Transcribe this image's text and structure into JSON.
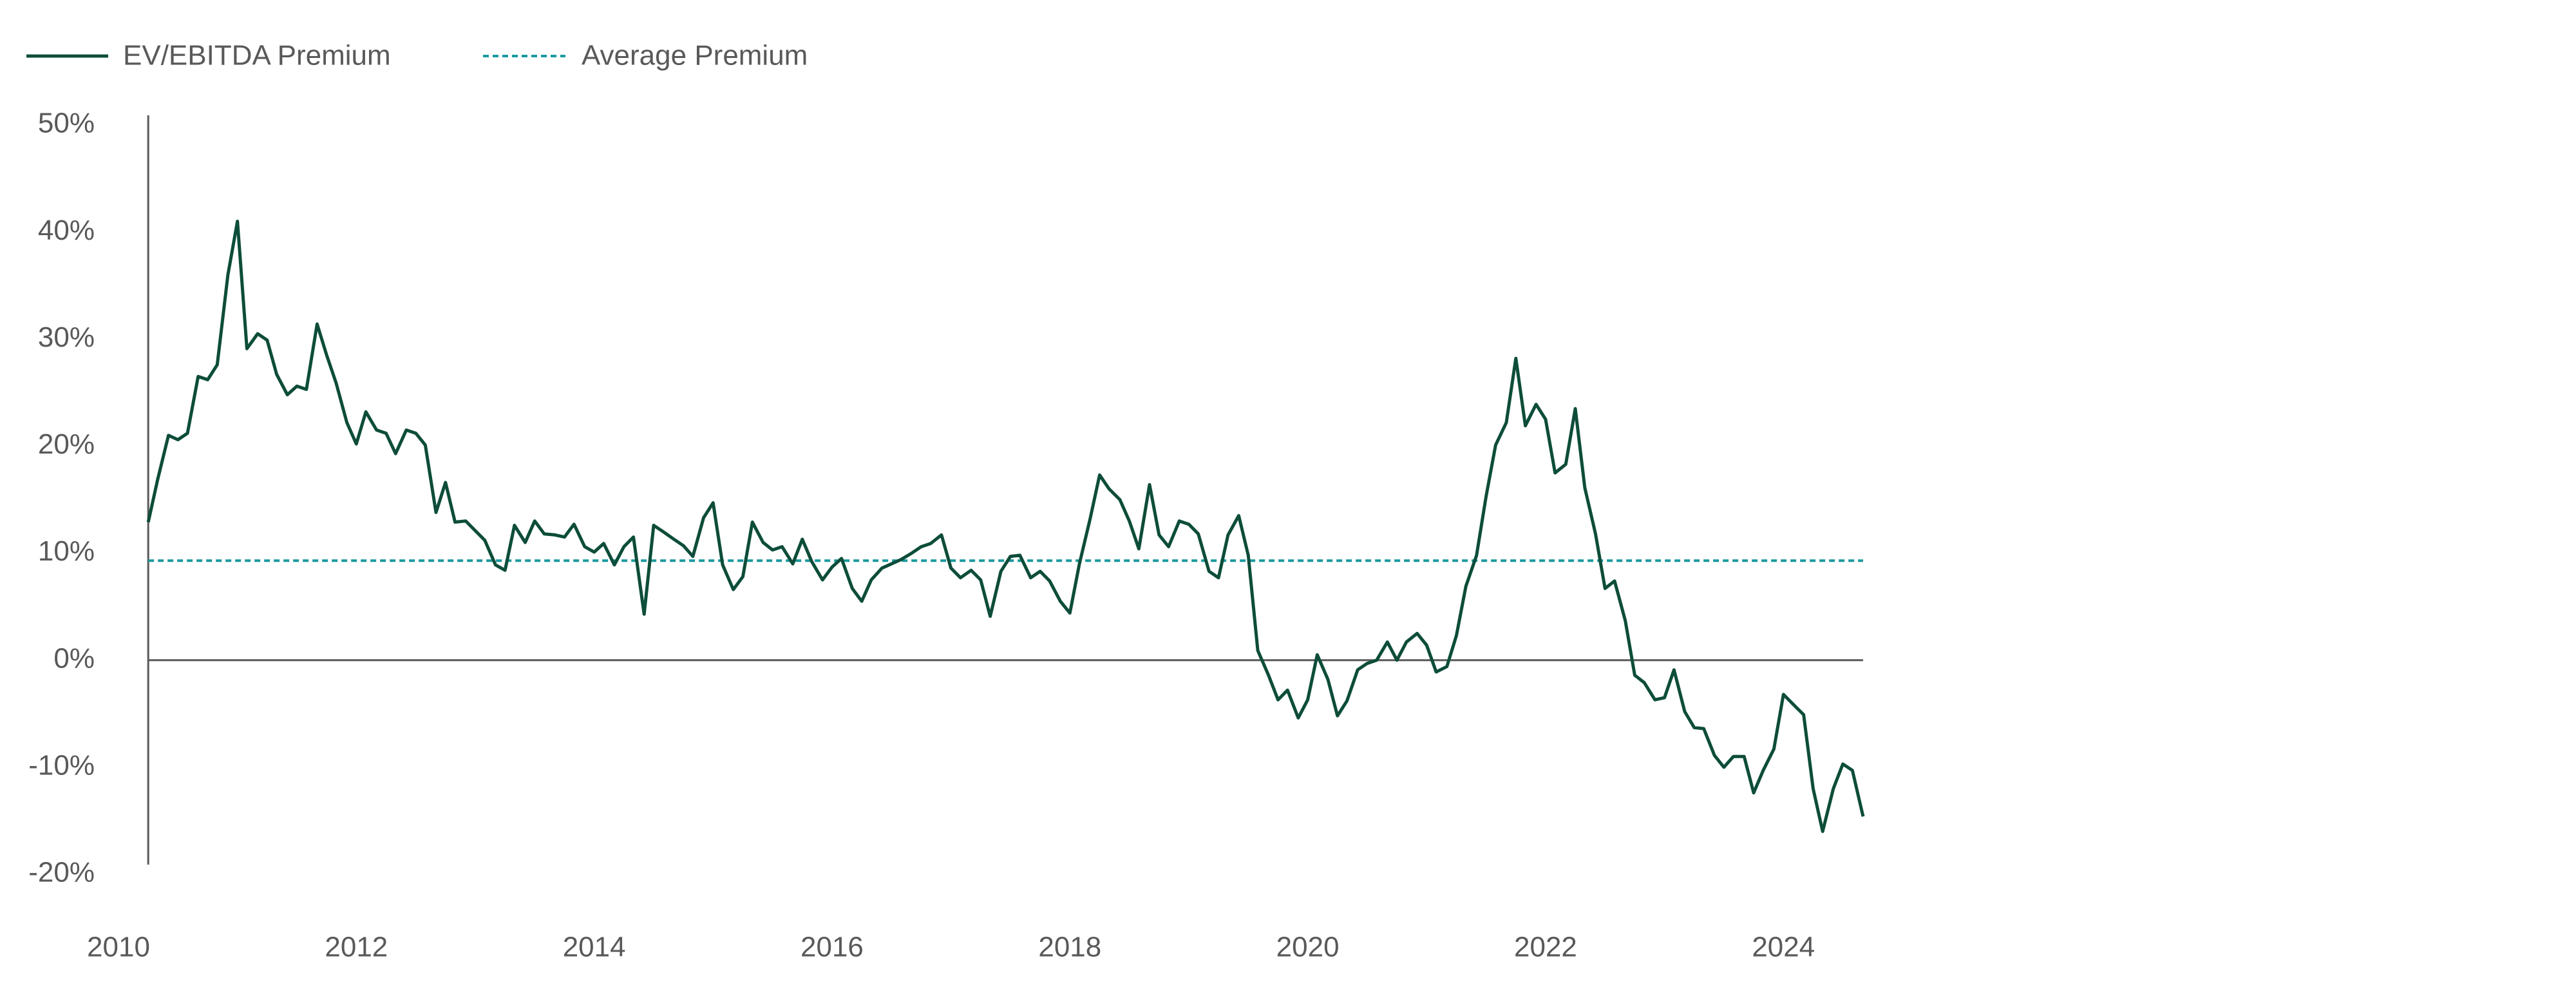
{
  "chart_data": {
    "type": "line",
    "x": [
      2010.25,
      2010.33,
      2010.42,
      2010.5,
      2010.58,
      2010.67,
      2010.75,
      2010.83,
      2010.92,
      2011,
      2011.08,
      2011.17,
      2011.25,
      2011.33,
      2011.42,
      2011.5,
      2011.58,
      2011.67,
      2011.75,
      2011.83,
      2011.92,
      2012,
      2012.08,
      2012.17,
      2012.25,
      2012.33,
      2012.42,
      2012.5,
      2012.58,
      2012.67,
      2012.75,
      2012.83,
      2012.92,
      2013,
      2013.08,
      2013.17,
      2013.25,
      2013.33,
      2013.42,
      2013.5,
      2013.58,
      2013.67,
      2013.75,
      2013.83,
      2013.92,
      2014,
      2014.08,
      2014.17,
      2014.25,
      2014.33,
      2014.42,
      2014.5,
      2014.58,
      2014.67,
      2014.75,
      2014.83,
      2014.92,
      2015,
      2015.08,
      2015.17,
      2015.25,
      2015.33,
      2015.42,
      2015.5,
      2015.58,
      2015.67,
      2015.75,
      2015.83,
      2015.92,
      2016,
      2016.08,
      2016.17,
      2016.25,
      2016.33,
      2016.42,
      2016.5,
      2016.58,
      2016.67,
      2016.75,
      2016.83,
      2016.92,
      2017,
      2017.08,
      2017.17,
      2017.25,
      2017.33,
      2017.42,
      2017.5,
      2017.58,
      2017.67,
      2017.75,
      2017.83,
      2017.92,
      2018,
      2018.08,
      2018.17,
      2018.25,
      2018.33,
      2018.42,
      2018.5,
      2018.58,
      2018.67,
      2018.75,
      2018.83,
      2018.92,
      2019,
      2019.08,
      2019.17,
      2019.25,
      2019.33,
      2019.42,
      2019.5,
      2019.58,
      2019.67,
      2019.75,
      2019.83,
      2019.92,
      2020,
      2020.08,
      2020.17,
      2020.25,
      2020.33,
      2020.42,
      2020.5,
      2020.58,
      2020.67,
      2020.75,
      2020.83,
      2020.92,
      2021,
      2021.08,
      2021.17,
      2021.25,
      2021.33,
      2021.42,
      2021.5,
      2021.58,
      2021.67,
      2021.75,
      2021.83,
      2021.92,
      2022,
      2022.08,
      2022.17,
      2022.25,
      2022.33,
      2022.42,
      2022.5,
      2022.58,
      2022.67,
      2022.75,
      2022.83,
      2022.92,
      2023,
      2023.08,
      2023.17,
      2023.25,
      2023.33,
      2023.42,
      2023.5,
      2023.58,
      2023.67,
      2023.75,
      2023.83,
      2023.92,
      2024,
      2024.08,
      2024.17,
      2024.25,
      2024.33,
      2024.42,
      2024.5,
      2024.58,
      2024.67
    ],
    "series": [
      {
        "name": "EV/EBITDA Premium",
        "color": "#0d4d3a",
        "values": [
          12.9,
          16.9,
          21.0,
          20.6,
          21.2,
          26.5,
          26.2,
          27.6,
          36,
          41,
          29.1,
          30.5,
          29.9,
          26.7,
          24.8,
          25.6,
          25.3,
          31.4,
          28.5,
          25.9,
          22.2,
          20.2,
          23.2,
          21.5,
          21.2,
          19.3,
          21.5,
          21.2,
          20.1,
          13.8,
          16.6,
          12.9,
          13.0,
          12.1,
          11.2,
          8.9,
          8.4,
          12.6,
          11.0,
          13.0,
          11.8,
          11.7,
          11.5,
          12.7,
          10.6,
          10.1,
          10.9,
          8.9,
          10.6,
          11.5,
          4.3,
          12.6,
          12.0,
          11.3,
          10.7,
          9.7,
          13.3,
          14.7,
          8.9,
          6.6,
          7.8,
          12.9,
          11.0,
          10.3,
          10.6,
          9.0,
          11.3,
          9.2,
          7.5,
          8.7,
          9.5,
          6.7,
          5.5,
          7.5,
          8.6,
          9.0,
          9.4,
          10.0,
          10.6,
          10.9,
          11.7,
          8.6,
          7.7,
          8.4,
          7.5,
          4.1,
          8.3,
          9.7,
          9.8,
          7.7,
          8.3,
          7.4,
          5.5,
          4.4,
          9.0,
          13.2,
          17.3,
          16.0,
          15.0,
          13.0,
          10.4,
          16.4,
          11.7,
          10.6,
          13.0,
          12.7,
          11.8,
          8.3,
          7.7,
          11.7,
          13.5,
          9.8,
          0.9,
          -1.4,
          -3.7,
          -2.8,
          -5.4,
          -3.7,
          0.5,
          -1.8,
          -5.2,
          -3.8,
          -0.9,
          -0.3,
          0,
          1.7,
          0,
          1.7,
          2.5,
          1.4,
          -1.1,
          -0.6,
          2.3,
          6.9,
          9.8,
          15.3,
          20.1,
          22.2,
          28.2,
          21.9,
          23.9,
          22.5,
          17.5,
          18.3,
          23.5,
          16.1,
          11.8,
          6.7,
          7.4,
          3.7,
          -1.4,
          -2.1,
          -3.7,
          -3.5,
          -0.9,
          -4.8,
          -6.3,
          -6.4,
          -8.9,
          -10.0,
          -9.0,
          -9.0,
          -12.4,
          -10.3,
          -8.3,
          -3.2,
          -4.1,
          -5.1,
          -12.0,
          -16.0,
          -12.0,
          -9.7,
          -10.3,
          -14.6
        ]
      }
    ],
    "reference_line": {
      "name": "Average Premium",
      "value": 9.3,
      "color": "#1a9a9e"
    },
    "xlim": [
      2010,
      2024.67
    ],
    "xticks": [
      2010,
      2012,
      2014,
      2016,
      2018,
      2020,
      2022,
      2024
    ],
    "ylim": [
      -20,
      50
    ],
    "yticks": [
      {
        "value": -20,
        "label": "-20%"
      },
      {
        "value": -10,
        "label": "-10%"
      },
      {
        "value": 0,
        "label": "0%"
      },
      {
        "value": 10,
        "label": "10%"
      },
      {
        "value": 20,
        "label": "20%"
      },
      {
        "value": 30,
        "label": "30%"
      },
      {
        "value": 40,
        "label": "40%"
      },
      {
        "value": 50,
        "label": "50%"
      }
    ],
    "grid": false
  }
}
